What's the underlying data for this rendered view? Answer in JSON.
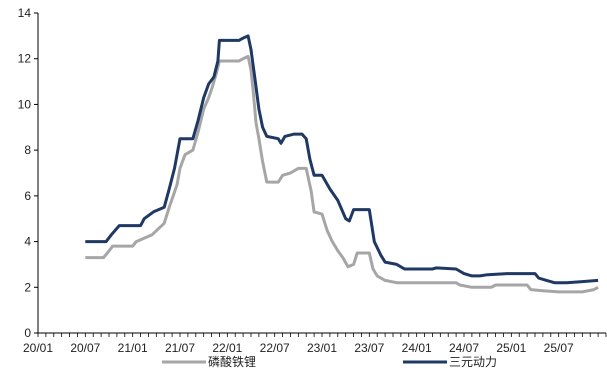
{
  "chart_data": {
    "type": "line",
    "title": "",
    "xlabel": "",
    "ylabel": "",
    "ylim": [
      0,
      14
    ],
    "yticks": [
      0,
      2,
      4,
      6,
      8,
      10,
      12,
      14
    ],
    "xlim": [
      "2020-01",
      "2025-12"
    ],
    "xticks": [
      "20/01",
      "20/07",
      "21/01",
      "21/07",
      "22/01",
      "22/07",
      "23/01",
      "23/07",
      "24/01",
      "24/07",
      "25/01",
      "25/07"
    ],
    "grid": false,
    "legend_placement": "bottom",
    "series": [
      {
        "name": "磷酸铁锂",
        "color": "#a6a6a6",
        "points": [
          [
            "2020-07-01",
            3.3
          ],
          [
            "2020-09-10",
            3.3
          ],
          [
            "2020-09-25",
            3.5
          ],
          [
            "2020-10-15",
            3.8
          ],
          [
            "2021-01-01",
            3.8
          ],
          [
            "2021-01-15",
            4.0
          ],
          [
            "2021-03-15",
            4.3
          ],
          [
            "2021-05-01",
            4.8
          ],
          [
            "2021-05-20",
            5.5
          ],
          [
            "2021-06-05",
            6.0
          ],
          [
            "2021-06-20",
            6.5
          ],
          [
            "2021-07-01",
            7.2
          ],
          [
            "2021-07-20",
            7.8
          ],
          [
            "2021-08-20",
            8.0
          ],
          [
            "2021-09-10",
            8.8
          ],
          [
            "2021-10-01",
            9.8
          ],
          [
            "2021-10-20",
            10.3
          ],
          [
            "2021-11-05",
            10.8
          ],
          [
            "2021-11-20",
            11.4
          ],
          [
            "2021-12-01",
            11.9
          ],
          [
            "2022-02-15",
            11.9
          ],
          [
            "2022-03-01",
            12.0
          ],
          [
            "2022-03-20",
            12.1
          ],
          [
            "2022-04-01",
            11.5
          ],
          [
            "2022-04-10",
            10.5
          ],
          [
            "2022-04-20",
            9.2
          ],
          [
            "2022-05-01",
            8.5
          ],
          [
            "2022-05-15",
            7.5
          ],
          [
            "2022-06-01",
            6.6
          ],
          [
            "2022-07-15",
            6.6
          ],
          [
            "2022-08-01",
            6.9
          ],
          [
            "2022-09-01",
            7.0
          ],
          [
            "2022-10-01",
            7.2
          ],
          [
            "2022-11-01",
            7.2
          ],
          [
            "2022-11-20",
            6.2
          ],
          [
            "2022-12-01",
            5.3
          ],
          [
            "2023-01-01",
            5.2
          ],
          [
            "2023-01-20",
            4.5
          ],
          [
            "2023-02-10",
            4.0
          ],
          [
            "2023-03-01",
            3.6
          ],
          [
            "2023-03-20",
            3.3
          ],
          [
            "2023-04-10",
            2.9
          ],
          [
            "2023-05-01",
            3.0
          ],
          [
            "2023-05-15",
            3.5
          ],
          [
            "2023-06-15",
            3.5
          ],
          [
            "2023-07-01",
            3.5
          ],
          [
            "2023-07-15",
            2.8
          ],
          [
            "2023-08-01",
            2.5
          ],
          [
            "2023-09-01",
            2.3
          ],
          [
            "2023-10-15",
            2.2
          ],
          [
            "2024-06-01",
            2.2
          ],
          [
            "2024-06-15",
            2.1
          ],
          [
            "2024-08-01",
            2.0
          ],
          [
            "2024-10-15",
            2.0
          ],
          [
            "2024-11-01",
            2.1
          ],
          [
            "2025-03-01",
            2.1
          ],
          [
            "2025-03-15",
            1.9
          ],
          [
            "2025-05-01",
            1.85
          ],
          [
            "2025-07-01",
            1.8
          ],
          [
            "2025-10-01",
            1.8
          ],
          [
            "2025-11-15",
            1.9
          ],
          [
            "2025-12-01",
            2.0
          ]
        ]
      },
      {
        "name": "三元动力",
        "color": "#1f3864",
        "points": [
          [
            "2020-07-01",
            4.0
          ],
          [
            "2020-09-20",
            4.0
          ],
          [
            "2020-10-10",
            4.3
          ],
          [
            "2020-11-10",
            4.7
          ],
          [
            "2021-02-01",
            4.7
          ],
          [
            "2021-02-15",
            5.0
          ],
          [
            "2021-03-20",
            5.3
          ],
          [
            "2021-05-01",
            5.5
          ],
          [
            "2021-05-20",
            6.3
          ],
          [
            "2021-06-10",
            7.2
          ],
          [
            "2021-07-01",
            8.5
          ],
          [
            "2021-08-20",
            8.5
          ],
          [
            "2021-09-10",
            9.3
          ],
          [
            "2021-10-01",
            10.3
          ],
          [
            "2021-10-20",
            10.9
          ],
          [
            "2021-11-10",
            11.2
          ],
          [
            "2021-11-25",
            11.9
          ],
          [
            "2021-12-01",
            12.8
          ],
          [
            "2022-02-15",
            12.8
          ],
          [
            "2022-03-01",
            12.9
          ],
          [
            "2022-03-20",
            13.0
          ],
          [
            "2022-04-01",
            12.4
          ],
          [
            "2022-04-15",
            11.2
          ],
          [
            "2022-05-01",
            9.8
          ],
          [
            "2022-05-15",
            9.0
          ],
          [
            "2022-06-01",
            8.6
          ],
          [
            "2022-07-15",
            8.5
          ],
          [
            "2022-07-25",
            8.3
          ],
          [
            "2022-08-10",
            8.6
          ],
          [
            "2022-09-15",
            8.7
          ],
          [
            "2022-10-15",
            8.7
          ],
          [
            "2022-11-01",
            8.5
          ],
          [
            "2022-11-15",
            7.6
          ],
          [
            "2022-12-01",
            6.9
          ],
          [
            "2023-01-01",
            6.9
          ],
          [
            "2023-02-01",
            6.3
          ],
          [
            "2023-03-01",
            5.8
          ],
          [
            "2023-04-01",
            5.0
          ],
          [
            "2023-04-15",
            4.9
          ],
          [
            "2023-05-01",
            5.4
          ],
          [
            "2023-07-01",
            5.4
          ],
          [
            "2023-07-20",
            4.0
          ],
          [
            "2023-08-15",
            3.4
          ],
          [
            "2023-09-01",
            3.1
          ],
          [
            "2023-10-15",
            3.0
          ],
          [
            "2023-11-15",
            2.8
          ],
          [
            "2024-03-01",
            2.8
          ],
          [
            "2024-03-15",
            2.85
          ],
          [
            "2024-06-01",
            2.8
          ],
          [
            "2024-07-01",
            2.6
          ],
          [
            "2024-08-01",
            2.5
          ],
          [
            "2024-09-01",
            2.5
          ],
          [
            "2024-10-01",
            2.55
          ],
          [
            "2024-12-15",
            2.6
          ],
          [
            "2025-04-01",
            2.6
          ],
          [
            "2025-04-15",
            2.4
          ],
          [
            "2025-05-15",
            2.3
          ],
          [
            "2025-06-15",
            2.2
          ],
          [
            "2025-08-01",
            2.2
          ],
          [
            "2025-10-01",
            2.25
          ],
          [
            "2025-12-01",
            2.3
          ]
        ]
      }
    ]
  }
}
